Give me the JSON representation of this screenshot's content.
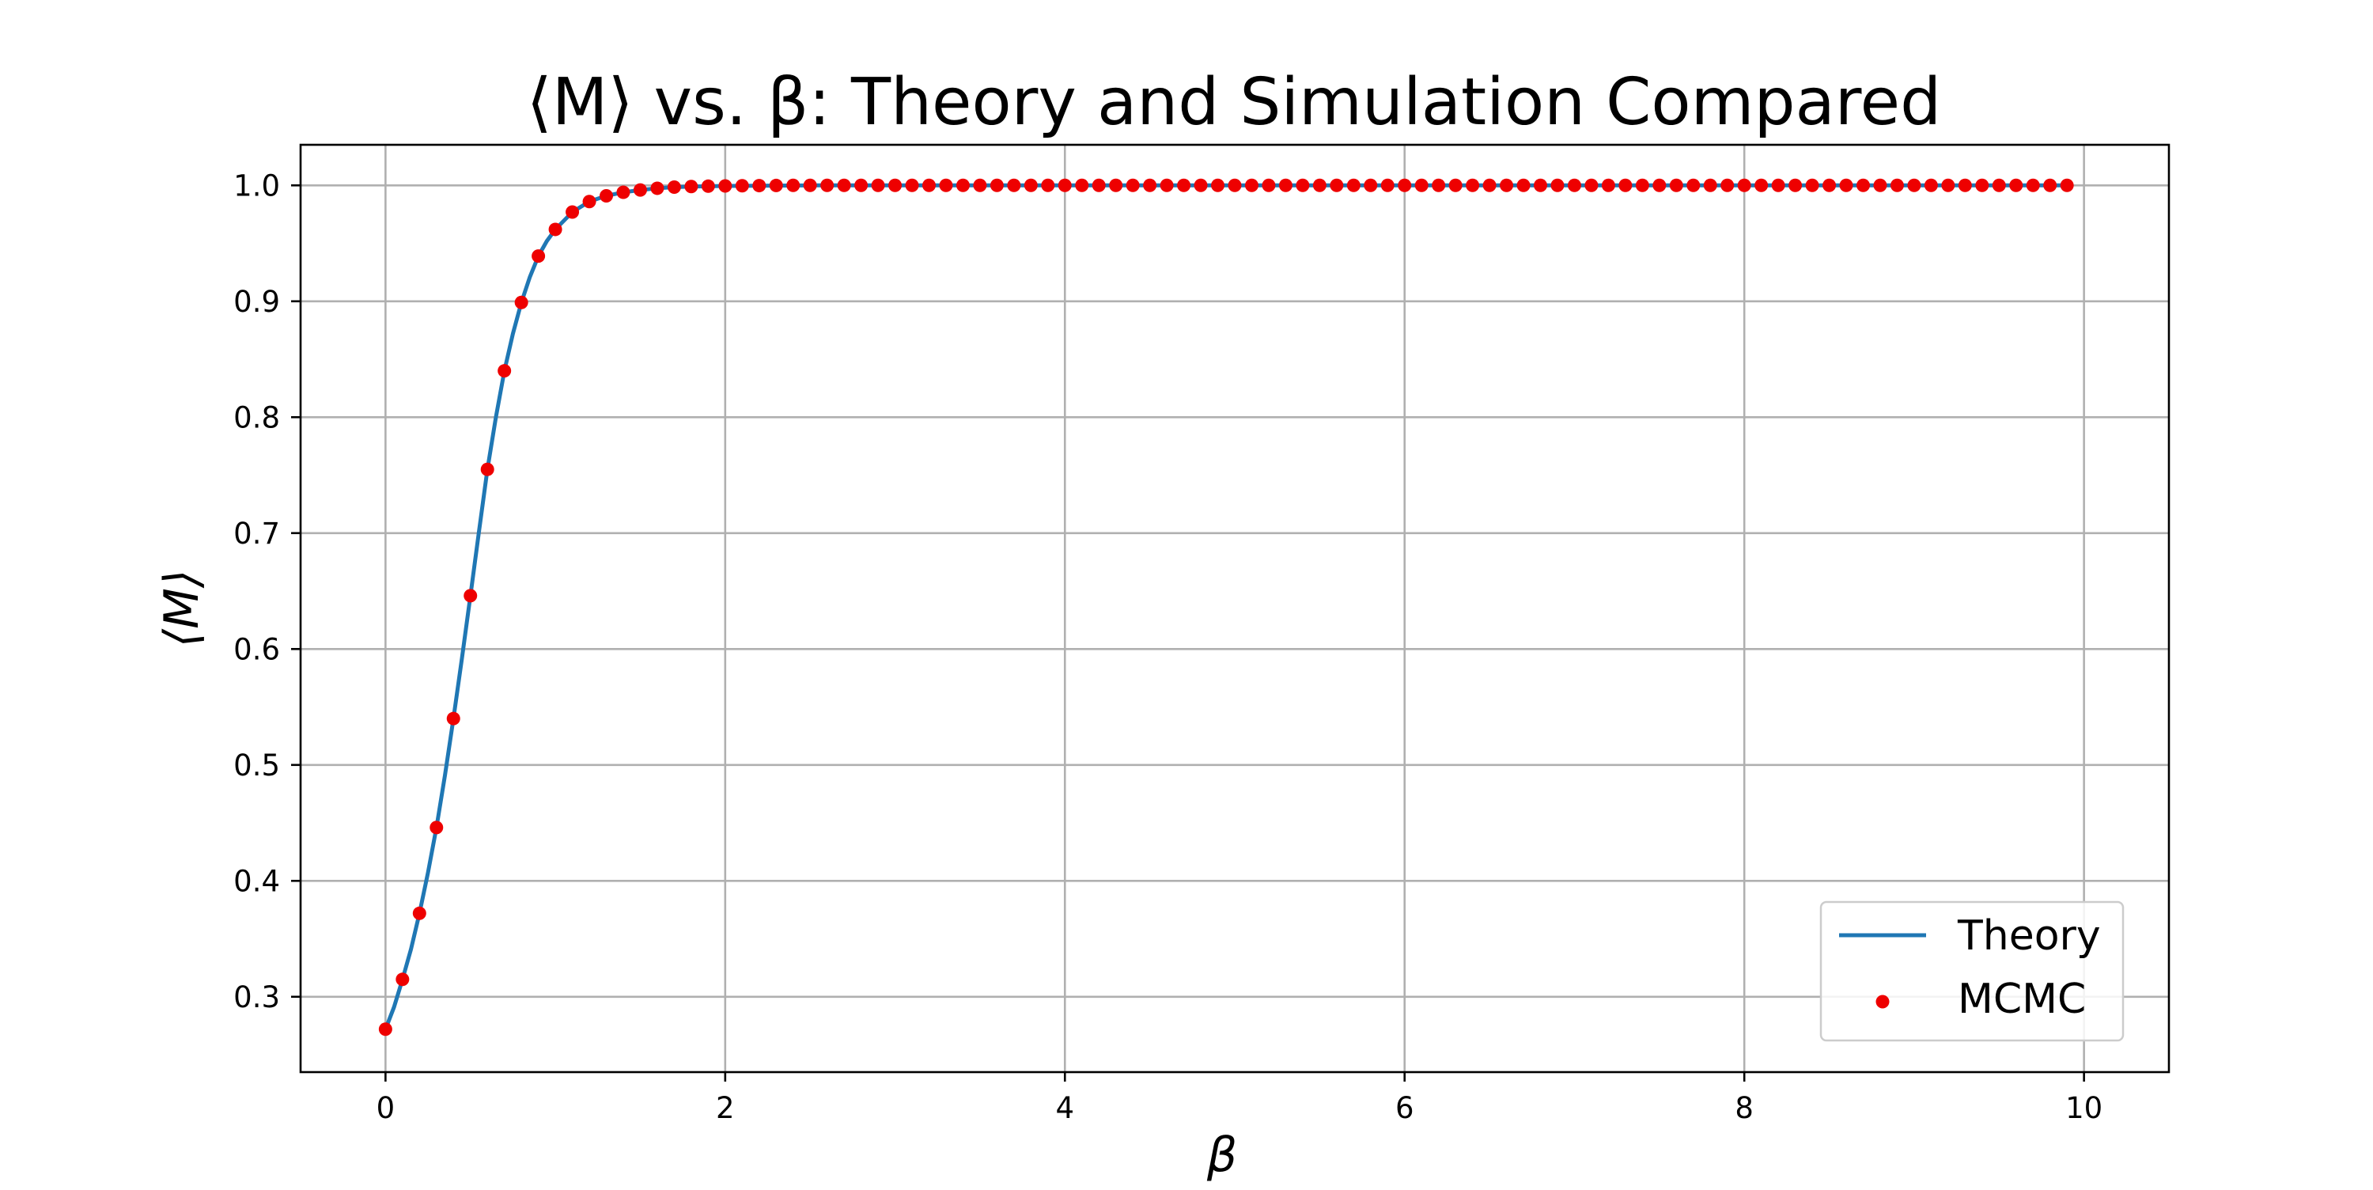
{
  "chart_data": {
    "type": "line",
    "title": "⟨M⟩ vs. β: Theory and Simulation Compared",
    "xlabel": "β",
    "ylabel": "⟨M⟩",
    "xlim": [
      -0.5,
      10.5
    ],
    "ylim": [
      0.235,
      1.035
    ],
    "x_ticks": [
      0,
      2,
      4,
      6,
      8,
      10
    ],
    "x_tick_labels": [
      "0",
      "2",
      "4",
      "6",
      "8",
      "10"
    ],
    "y_ticks": [
      0.3,
      0.4,
      0.5,
      0.6,
      0.7,
      0.8,
      0.9,
      1.0
    ],
    "y_tick_labels": [
      "0.3",
      "0.4",
      "0.5",
      "0.6",
      "0.7",
      "0.8",
      "0.9",
      "1.0"
    ],
    "grid": true,
    "legend_position": "bottom-right",
    "series": [
      {
        "name": "Theory",
        "kind": "line",
        "color": "#1f77b4",
        "x": [
          0.0,
          0.05,
          0.1,
          0.15,
          0.2,
          0.25,
          0.3,
          0.35,
          0.4,
          0.45,
          0.5,
          0.55,
          0.6,
          0.65,
          0.7,
          0.75,
          0.8,
          0.85,
          0.9,
          0.95,
          1.0,
          1.1,
          1.2,
          1.3,
          1.4,
          1.5,
          1.6,
          1.7,
          1.8,
          2.0,
          2.5,
          3.0,
          4.0,
          5.0,
          6.0,
          7.0,
          8.0,
          9.0,
          9.9
        ],
        "y": [
          0.272,
          0.291,
          0.315,
          0.341,
          0.372,
          0.407,
          0.446,
          0.491,
          0.54,
          0.592,
          0.646,
          0.701,
          0.755,
          0.8,
          0.84,
          0.872,
          0.899,
          0.921,
          0.939,
          0.952,
          0.962,
          0.977,
          0.986,
          0.991,
          0.994,
          0.996,
          0.9975,
          0.9985,
          0.999,
          0.9995,
          1.0,
          1.0,
          1.0,
          1.0,
          1.0,
          1.0,
          1.0,
          1.0,
          1.0
        ]
      },
      {
        "name": "MCMC",
        "kind": "scatter",
        "color": "#ee0000",
        "x": [
          0.0,
          0.1,
          0.2,
          0.3,
          0.4,
          0.5,
          0.6,
          0.7,
          0.8,
          0.9,
          1.0,
          1.1,
          1.2,
          1.3,
          1.4,
          1.5,
          1.6,
          1.7,
          1.8,
          1.9,
          2.0,
          2.1,
          2.2,
          2.3,
          2.4,
          2.5,
          2.6,
          2.7,
          2.8,
          2.9,
          3.0,
          3.1,
          3.2,
          3.3,
          3.4,
          3.5,
          3.6,
          3.7,
          3.8,
          3.9,
          4.0,
          4.1,
          4.2,
          4.3,
          4.4,
          4.5,
          4.6,
          4.7,
          4.8,
          4.9,
          5.0,
          5.1,
          5.2,
          5.3,
          5.4,
          5.5,
          5.6,
          5.7,
          5.8,
          5.9,
          6.0,
          6.1,
          6.2,
          6.3,
          6.4,
          6.5,
          6.6,
          6.7,
          6.8,
          6.9,
          7.0,
          7.1,
          7.2,
          7.3,
          7.4,
          7.5,
          7.6,
          7.7,
          7.8,
          7.9,
          8.0,
          8.1,
          8.2,
          8.3,
          8.4,
          8.5,
          8.6,
          8.7,
          8.8,
          8.9,
          9.0,
          9.1,
          9.2,
          9.3,
          9.4,
          9.5,
          9.6,
          9.7,
          9.8,
          9.9
        ],
        "y": [
          0.272,
          0.315,
          0.372,
          0.446,
          0.54,
          0.646,
          0.755,
          0.84,
          0.899,
          0.939,
          0.962,
          0.977,
          0.986,
          0.991,
          0.994,
          0.996,
          0.9975,
          0.9985,
          0.999,
          0.9993,
          0.9995,
          0.9997,
          0.9998,
          0.9999,
          1.0,
          1.0,
          1.0,
          1.0,
          1.0,
          1.0,
          1.0,
          1.0,
          1.0,
          1.0,
          1.0,
          1.0,
          1.0,
          1.0,
          1.0,
          1.0,
          1.0,
          1.0,
          1.0,
          1.0,
          1.0,
          1.0,
          1.0,
          1.0,
          1.0,
          1.0,
          1.0,
          1.0,
          1.0,
          1.0,
          1.0,
          1.0,
          1.0,
          1.0,
          1.0,
          1.0,
          1.0,
          1.0,
          1.0,
          1.0,
          1.0,
          1.0,
          1.0,
          1.0,
          1.0,
          1.0,
          1.0,
          1.0,
          1.0,
          1.0,
          1.0,
          1.0,
          1.0,
          1.0,
          1.0,
          1.0,
          1.0,
          1.0,
          1.0,
          1.0,
          1.0,
          1.0,
          1.0,
          1.0,
          1.0,
          1.0,
          1.0,
          1.0,
          1.0,
          1.0,
          1.0,
          1.0,
          1.0,
          1.0,
          1.0,
          1.0
        ]
      }
    ]
  }
}
